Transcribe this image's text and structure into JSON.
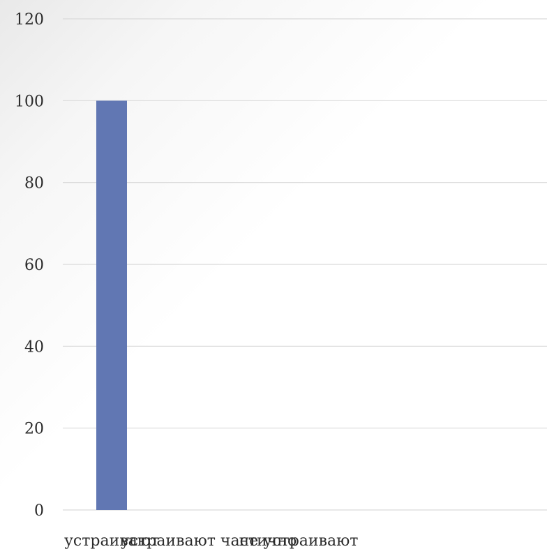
{
  "chart_data": {
    "type": "bar",
    "title": "",
    "xlabel": "",
    "ylabel": "",
    "ylim": [
      0,
      120
    ],
    "yticks": [
      0,
      20,
      40,
      60,
      80,
      100,
      120
    ],
    "grid": true,
    "categories": [
      "устраивают",
      "устраивают частично",
      "не устраивают"
    ],
    "series": [
      {
        "values": [
          100,
          0,
          0
        ]
      }
    ],
    "colors": {
      "bar": "#6177b3",
      "grid": "#d9d9d9",
      "text": "#2b2b2b"
    }
  }
}
